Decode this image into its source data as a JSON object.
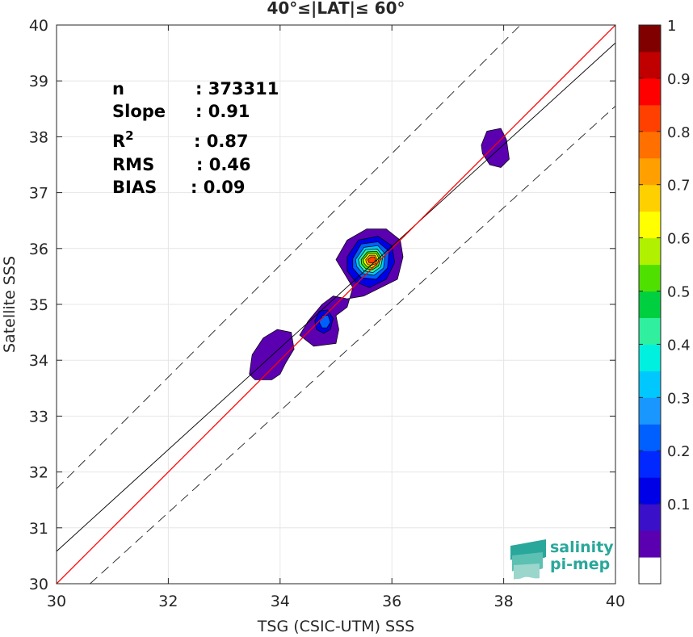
{
  "chart_data": {
    "type": "heatmap",
    "title": "40°≤|LAT|≤ 60°",
    "xlabel": "TSG (CSIC-UTM) SSS",
    "ylabel": "Satellite SSS",
    "xlim": [
      30,
      40
    ],
    "ylim": [
      30,
      40
    ],
    "x_ticks": [
      "30",
      "32",
      "34",
      "36",
      "38",
      "40"
    ],
    "y_ticks": [
      "30",
      "31",
      "32",
      "33",
      "34",
      "35",
      "36",
      "37",
      "38",
      "39",
      "40"
    ],
    "grid": true,
    "stats": [
      {
        "label": "n",
        "value": ": 373311"
      },
      {
        "label": "Slope",
        "value": ": 0.91"
      },
      {
        "label": "R²",
        "value": ": 0.87"
      },
      {
        "label": "RMS",
        "value": ": 0.46"
      },
      {
        "label": "BIAS",
        "value": ": 0.09"
      }
    ],
    "one_to_one_line": {
      "color": "#ff0000",
      "x": [
        30,
        40
      ],
      "y": [
        30,
        40
      ]
    },
    "regression_line": {
      "color": "#000000",
      "x": [
        30,
        40
      ],
      "y": [
        30.58,
        39.68
      ]
    },
    "rms_bounds": [
      {
        "x": [
          30,
          40
        ],
        "y": [
          31.7,
          41.7
        ]
      },
      {
        "x": [
          30.6,
          40
        ],
        "y": [
          30,
          38.55
        ]
      }
    ],
    "density_blobs": [
      {
        "cx": 35.65,
        "cy": 35.78,
        "peak": 1.0,
        "levels": [
          {
            "level": 0.05,
            "pts": [
              [
                35.0,
                35.8
              ],
              [
                35.2,
                36.15
              ],
              [
                35.55,
                36.35
              ],
              [
                35.9,
                36.35
              ],
              [
                36.15,
                36.15
              ],
              [
                36.2,
                35.85
              ],
              [
                36.1,
                35.45
              ],
              [
                35.8,
                35.3
              ],
              [
                35.5,
                35.15
              ],
              [
                35.2,
                35.1
              ],
              [
                34.95,
                35.15
              ],
              [
                34.75,
                35.0
              ],
              [
                34.5,
                34.7
              ],
              [
                34.35,
                34.45
              ],
              [
                34.6,
                34.25
              ],
              [
                35.0,
                34.3
              ],
              [
                35.05,
                34.55
              ],
              [
                35.0,
                34.8
              ],
              [
                35.2,
                34.95
              ],
              [
                35.3,
                35.3
              ]
            ]
          },
          {
            "level": 0.15,
            "pts": [
              [
                35.2,
                35.85
              ],
              [
                35.4,
                36.15
              ],
              [
                35.75,
                36.22
              ],
              [
                36.0,
                36.05
              ],
              [
                36.05,
                35.75
              ],
              [
                35.9,
                35.45
              ],
              [
                35.6,
                35.3
              ],
              [
                35.35,
                35.4
              ],
              [
                35.2,
                35.6
              ]
            ]
          },
          {
            "level": 0.25,
            "pts": [
              [
                35.3,
                35.82
              ],
              [
                35.45,
                36.08
              ],
              [
                35.75,
                36.12
              ],
              [
                35.95,
                35.95
              ],
              [
                35.92,
                35.65
              ],
              [
                35.72,
                35.45
              ],
              [
                35.45,
                35.48
              ],
              [
                35.3,
                35.65
              ]
            ]
          },
          {
            "level": 0.35,
            "pts": [
              [
                35.35,
                35.8
              ],
              [
                35.5,
                36.02
              ],
              [
                35.75,
                36.05
              ],
              [
                35.88,
                35.9
              ],
              [
                35.85,
                35.65
              ],
              [
                35.68,
                35.52
              ],
              [
                35.48,
                35.55
              ],
              [
                35.37,
                35.68
              ]
            ]
          },
          {
            "level": 0.45,
            "pts": [
              [
                35.4,
                35.8
              ],
              [
                35.53,
                35.98
              ],
              [
                35.74,
                35.99
              ],
              [
                35.84,
                35.86
              ],
              [
                35.8,
                35.67
              ],
              [
                35.66,
                35.57
              ],
              [
                35.5,
                35.6
              ],
              [
                35.42,
                35.7
              ]
            ]
          },
          {
            "level": 0.55,
            "pts": [
              [
                35.45,
                35.8
              ],
              [
                35.56,
                35.94
              ],
              [
                35.73,
                35.95
              ],
              [
                35.8,
                35.84
              ],
              [
                35.76,
                35.69
              ],
              [
                35.65,
                35.62
              ],
              [
                35.53,
                35.64
              ],
              [
                35.46,
                35.72
              ]
            ]
          },
          {
            "level": 0.65,
            "pts": [
              [
                35.49,
                35.8
              ],
              [
                35.58,
                35.91
              ],
              [
                35.72,
                35.91
              ],
              [
                35.77,
                35.82
              ],
              [
                35.73,
                35.71
              ],
              [
                35.64,
                35.66
              ],
              [
                35.55,
                35.68
              ],
              [
                35.5,
                35.74
              ]
            ]
          },
          {
            "level": 0.75,
            "pts": [
              [
                35.53,
                35.8
              ],
              [
                35.6,
                35.88
              ],
              [
                35.7,
                35.88
              ],
              [
                35.74,
                35.8
              ],
              [
                35.71,
                35.73
              ],
              [
                35.64,
                35.7
              ],
              [
                35.57,
                35.71
              ],
              [
                35.54,
                35.75
              ]
            ]
          },
          {
            "level": 0.85,
            "pts": [
              [
                35.57,
                35.8
              ],
              [
                35.63,
                35.85
              ],
              [
                35.69,
                35.85
              ],
              [
                35.71,
                35.79
              ],
              [
                35.68,
                35.75
              ],
              [
                35.63,
                35.74
              ],
              [
                35.59,
                35.75
              ]
            ]
          }
        ]
      },
      {
        "cx": 34.8,
        "cy": 34.68,
        "peak": 0.3,
        "levels": [
          {
            "level": 0.15,
            "pts": [
              [
                34.62,
                34.7
              ],
              [
                34.7,
                34.88
              ],
              [
                34.85,
                34.9
              ],
              [
                34.95,
                34.75
              ],
              [
                34.9,
                34.55
              ],
              [
                34.78,
                34.48
              ],
              [
                34.65,
                34.55
              ]
            ]
          },
          {
            "level": 0.25,
            "pts": [
              [
                34.7,
                34.68
              ],
              [
                34.76,
                34.8
              ],
              [
                34.86,
                34.8
              ],
              [
                34.9,
                34.68
              ],
              [
                34.84,
                34.58
              ],
              [
                34.75,
                34.58
              ]
            ]
          }
        ]
      },
      {
        "cx": 33.9,
        "cy": 34.1,
        "peak": 0.08,
        "levels": [
          {
            "level": 0.05,
            "pts": [
              [
                33.45,
                33.75
              ],
              [
                33.5,
                34.1
              ],
              [
                33.7,
                34.4
              ],
              [
                33.95,
                34.55
              ],
              [
                34.2,
                34.5
              ],
              [
                34.25,
                34.2
              ],
              [
                34.1,
                33.95
              ],
              [
                34.0,
                33.75
              ],
              [
                33.85,
                33.65
              ],
              [
                33.55,
                33.65
              ]
            ]
          }
        ]
      },
      {
        "cx": 37.85,
        "cy": 37.85,
        "peak": 0.08,
        "levels": [
          {
            "level": 0.05,
            "pts": [
              [
                37.6,
                37.85
              ],
              [
                37.7,
                38.1
              ],
              [
                37.95,
                38.15
              ],
              [
                38.05,
                37.95
              ],
              [
                38.1,
                37.6
              ],
              [
                37.95,
                37.45
              ],
              [
                37.75,
                37.5
              ],
              [
                37.62,
                37.7
              ]
            ]
          }
        ]
      }
    ],
    "colorbar": {
      "levels": [
        0,
        0.05,
        0.1,
        0.15,
        0.2,
        0.25,
        0.3,
        0.35,
        0.4,
        0.45,
        0.5,
        0.55,
        0.6,
        0.65,
        0.7,
        0.75,
        0.8,
        0.85,
        0.9,
        0.95,
        1
      ],
      "colors": [
        "#ffffff",
        "#5a00b0",
        "#3a10c8",
        "#0000e6",
        "#0028ff",
        "#0060ff",
        "#1a96ff",
        "#00c8ff",
        "#00f0e0",
        "#30f0a0",
        "#00d040",
        "#50e000",
        "#b0f000",
        "#ffff00",
        "#ffd000",
        "#ffa000",
        "#ff7000",
        "#ff4000",
        "#ff0000",
        "#c00000",
        "#800000"
      ],
      "ticks": [
        "0.1",
        "0.2",
        "0.3",
        "0.4",
        "0.5",
        "0.6",
        "0.7",
        "0.8",
        "0.9",
        "1"
      ]
    }
  },
  "logo": {
    "line1": "salinity",
    "line2": "pi-mep",
    "color": "#2aa79b"
  }
}
